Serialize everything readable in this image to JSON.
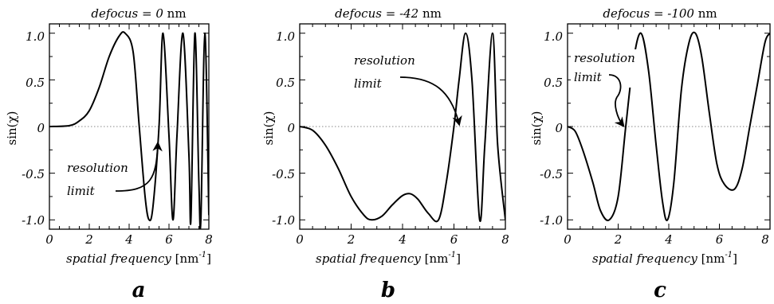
{
  "panels": [
    {
      "title": {
        "var": "defocus",
        "eq": " = ",
        "val": "0",
        "unit": " nm"
      },
      "ylabel": "sin(χ)",
      "xlabel": {
        "main": "spatial frequency",
        "unit_pre": " [nm",
        "sup": "-1",
        "unit_post": "]"
      },
      "annotation": {
        "line1": "resolution",
        "line2": "limit"
      },
      "letter": "a",
      "xticks": [
        "0",
        "2",
        "4",
        "6",
        "8"
      ],
      "yticks": [
        "1.0",
        "0.5",
        "0",
        "-0.5",
        "-1.0"
      ]
    },
    {
      "title": {
        "var": "defocus",
        "eq": " = ",
        "val": "-42",
        "unit": " nm"
      },
      "ylabel": "sin(χ)",
      "xlabel": {
        "main": "spatial frequency",
        "unit_pre": " [nm",
        "sup": "-1",
        "unit_post": "]"
      },
      "annotation": {
        "line1": "resolution",
        "line2": "limit"
      },
      "letter": "b",
      "xticks": [
        "0",
        "2",
        "4",
        "6",
        "8"
      ],
      "yticks": [
        "1.0",
        "0.5",
        "0",
        "-0.5",
        "-1.0"
      ]
    },
    {
      "title": {
        "var": "defocus",
        "eq": " = ",
        "val": "-100",
        "unit": " nm"
      },
      "ylabel": "sin(χ)",
      "xlabel": {
        "main": "spatial frequency",
        "unit_pre": " [nm",
        "sup": "-1",
        "unit_post": "]"
      },
      "annotation": {
        "line1": "resolution",
        "line2": "limit"
      },
      "letter": "c",
      "xticks": [
        "0",
        "2",
        "4",
        "6",
        "8"
      ],
      "yticks": [
        "1.0",
        "0.5",
        "0",
        "-0.5",
        "-1.0"
      ]
    }
  ],
  "chart_data": [
    {
      "type": "line",
      "title": "defocus = 0 nm",
      "xlabel": "spatial frequency [nm-1]",
      "ylabel": "sin(χ)",
      "xlim": [
        0,
        8
      ],
      "ylim": [
        -1.1,
        1.1
      ],
      "grid": false,
      "reference_line": {
        "y": 0,
        "style": "dotted"
      },
      "series": [
        {
          "x": [
            0,
            1,
            1.5,
            2,
            2.5,
            3,
            3.5,
            3.8,
            4.2,
            4.5,
            4.8,
            5.0,
            5.2,
            5.5,
            5.7,
            6.0,
            6.2,
            6.4,
            6.7,
            7.0,
            7.1,
            7.3,
            7.5,
            7.6,
            7.8,
            8.0
          ],
          "y": [
            0,
            0.01,
            0.06,
            0.17,
            0.42,
            0.75,
            0.97,
            1.0,
            0.8,
            0.02,
            -0.75,
            -1.0,
            -0.85,
            0.0,
            1.0,
            -0.1,
            -1.0,
            -0.1,
            1.0,
            -0.3,
            -1.0,
            1.0,
            -0.6,
            -1.0,
            1.0,
            -0.95
          ]
        }
      ],
      "resolution_limit_x": 4.5
    },
    {
      "type": "line",
      "title": "defocus = -42 nm",
      "xlabel": "spatial frequency [nm-1]",
      "ylabel": "sin(χ)",
      "xlim": [
        0,
        8
      ],
      "ylim": [
        -1.1,
        1.1
      ],
      "grid": false,
      "reference_line": {
        "y": 0,
        "style": "dotted"
      },
      "series": [
        {
          "x": [
            0,
            0.5,
            1,
            1.5,
            2,
            2.5,
            2.8,
            3.2,
            3.6,
            4.0,
            4.3,
            4.6,
            5.0,
            5.4,
            5.7,
            6.0,
            6.2,
            6.45,
            6.7,
            7.0,
            7.2,
            7.5,
            7.7,
            8.0
          ],
          "y": [
            0,
            -0.04,
            -0.2,
            -0.45,
            -0.75,
            -0.95,
            -1.0,
            -0.96,
            -0.84,
            -0.74,
            -0.72,
            -0.78,
            -0.93,
            -1.0,
            -0.6,
            0.0,
            0.5,
            1.0,
            0.5,
            -1.0,
            -0.2,
            1.0,
            -0.2,
            -1.0
          ]
        }
      ],
      "resolution_limit_x": 5.95
    },
    {
      "type": "line",
      "title": "defocus = -100 nm",
      "xlabel": "spatial frequency [nm-1]",
      "ylabel": "sin(χ)",
      "xlim": [
        0,
        8
      ],
      "ylim": [
        -1.1,
        1.1
      ],
      "grid": false,
      "reference_line": {
        "y": 0,
        "style": "dotted"
      },
      "series": [
        {
          "x": [
            0,
            0.3,
            0.6,
            1.0,
            1.3,
            1.65,
            2.0,
            2.3,
            2.6,
            2.9,
            3.2,
            3.5,
            3.75,
            3.95,
            4.2,
            4.5,
            4.8,
            5.05,
            5.3,
            5.6,
            5.9,
            6.2,
            6.6,
            6.9,
            7.2,
            7.5,
            7.8,
            8.0
          ],
          "y": [
            0,
            -0.05,
            -0.25,
            -0.6,
            -0.9,
            -1.0,
            -0.75,
            0.0,
            0.7,
            1.0,
            0.6,
            -0.2,
            -0.8,
            -1.0,
            -0.6,
            0.4,
            0.9,
            1.0,
            0.75,
            0.15,
            -0.4,
            -0.62,
            -0.67,
            -0.45,
            0.0,
            0.45,
            0.9,
            1.0
          ]
        }
      ],
      "resolution_limit_x": 2.35
    }
  ]
}
